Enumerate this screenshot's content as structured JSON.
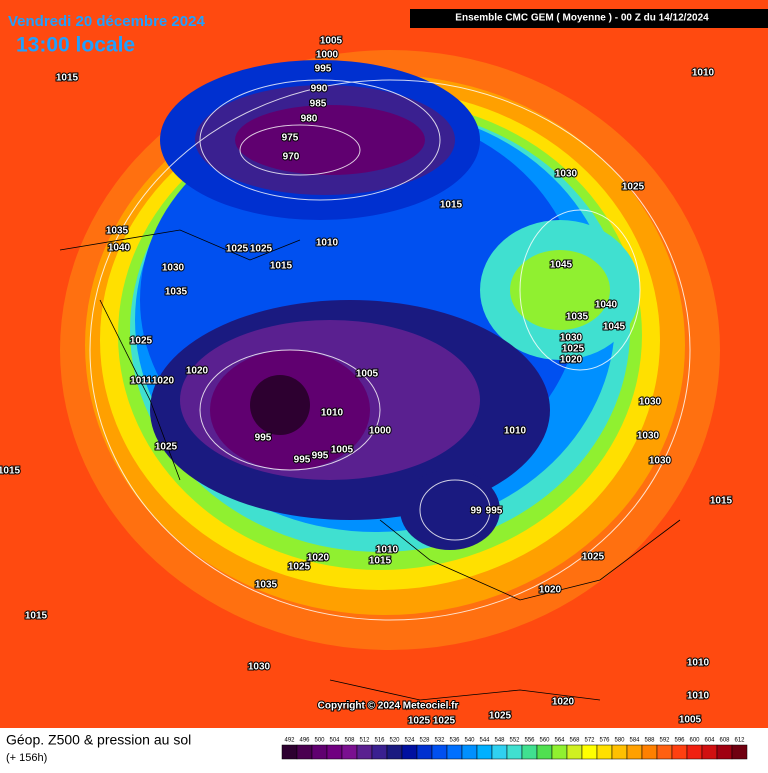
{
  "header": {
    "date": "Vendredi 20 décembre 2024",
    "time": "13:00 locale",
    "run": "Ensemble CMC GEM  ( Moyenne )  -  00 Z du 14/12/2024"
  },
  "isobar_labels": [
    1005,
    1000,
    995,
    1015,
    1010,
    990,
    985,
    980,
    975,
    970,
    1030,
    1025,
    1015,
    1035,
    1040,
    1025,
    1025,
    1010,
    1015,
    1030,
    1045,
    1035,
    1040,
    1035,
    1045,
    1025,
    1030,
    1025,
    1020,
    1020,
    1005,
    1011,
    1020,
    1010,
    1000,
    1010,
    1030,
    1030,
    995,
    1025,
    1005,
    995,
    995,
    1030,
    1015,
    99,
    995,
    1015,
    1010,
    1015,
    1020,
    1025,
    1025,
    1035,
    1020,
    1015,
    1030,
    1010,
    1020,
    1010,
    1025,
    1025,
    1025,
    1005
  ],
  "copyright": "Copyright © 2024 Meteociel.fr",
  "footer": {
    "title": "Géop. Z500 & pression au sol",
    "lead": "(+ 156h)"
  },
  "scale": {
    "values": [
      492,
      496,
      500,
      504,
      508,
      512,
      516,
      520,
      524,
      528,
      532,
      536,
      540,
      544,
      548,
      552,
      556,
      560,
      564,
      568,
      572,
      576,
      580,
      584,
      588,
      592,
      596,
      600,
      604,
      608,
      612
    ],
    "colors": [
      "#2d0030",
      "#4a0050",
      "#600070",
      "#700080",
      "#7a1090",
      "#5a2090",
      "#3a2090",
      "#1a1a80",
      "#0010a0",
      "#0030d0",
      "#0050f0",
      "#0070ff",
      "#0090ff",
      "#00b0ff",
      "#30d0f0",
      "#40e0d0",
      "#40e090",
      "#50e050",
      "#90f030",
      "#d0f020",
      "#ffff00",
      "#ffe000",
      "#ffc000",
      "#ffa000",
      "#ff8000",
      "#ff6010",
      "#ff4010",
      "#f02010",
      "#d01010",
      "#a00010",
      "#700010"
    ]
  }
}
